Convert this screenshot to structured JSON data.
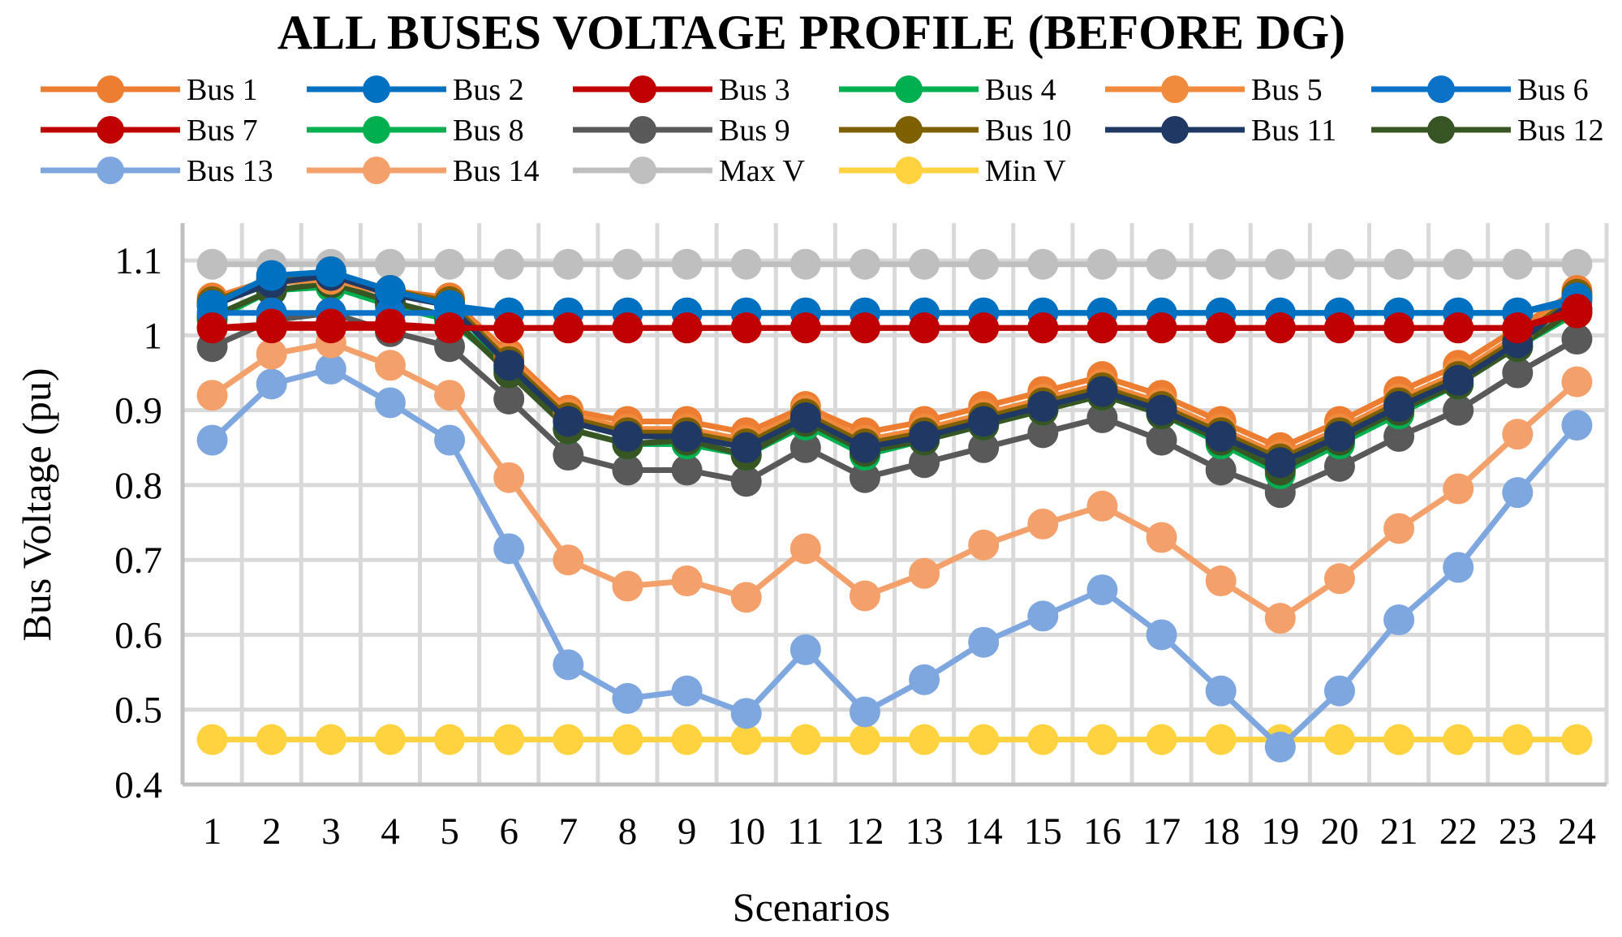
{
  "chart_data": {
    "type": "line",
    "title": "ALL BUSES VOLTAGE PROFILE (BEFORE DG)",
    "xlabel": "Scenarios",
    "ylabel": "Bus Voltage (pu)",
    "ylim": [
      0.4,
      1.15
    ],
    "yticks": [
      0.4,
      0.5,
      0.6,
      0.7,
      0.8,
      0.9,
      1,
      1.1
    ],
    "ytick_labels": [
      "0.4",
      "0.5",
      "0.6",
      "0.7",
      "0.8",
      "0.9",
      "1",
      "1.1"
    ],
    "categories": [
      "1",
      "2",
      "3",
      "4",
      "5",
      "6",
      "7",
      "8",
      "9",
      "10",
      "11",
      "12",
      "13",
      "14",
      "15",
      "16",
      "17",
      "18",
      "19",
      "20",
      "21",
      "22",
      "23",
      "24"
    ],
    "grid": true,
    "legend_position": "top",
    "series": [
      {
        "name": "Bus 1",
        "color": "#ED7D31",
        "values": [
          1.05,
          1.075,
          1.08,
          1.06,
          1.05,
          0.975,
          0.9,
          0.885,
          0.885,
          0.87,
          0.905,
          0.87,
          0.885,
          0.905,
          0.925,
          0.945,
          0.92,
          0.885,
          0.85,
          0.885,
          0.925,
          0.96,
          1.01,
          1.06
        ]
      },
      {
        "name": "Bus 2",
        "color": "#0070C0",
        "values": [
          1.04,
          1.08,
          1.085,
          1.06,
          1.04,
          1.03,
          1.03,
          1.03,
          1.03,
          1.03,
          1.03,
          1.03,
          1.03,
          1.03,
          1.03,
          1.03,
          1.03,
          1.03,
          1.03,
          1.03,
          1.03,
          1.03,
          1.03,
          1.05
        ]
      },
      {
        "name": "Bus 3",
        "color": "#C00000",
        "values": [
          1.01,
          1.01,
          1.01,
          1.01,
          1.01,
          1.01,
          1.01,
          1.01,
          1.01,
          1.01,
          1.01,
          1.01,
          1.01,
          1.01,
          1.01,
          1.01,
          1.01,
          1.01,
          1.01,
          1.01,
          1.01,
          1.01,
          1.01,
          1.03
        ]
      },
      {
        "name": "Bus 4",
        "color": "#00B050",
        "values": [
          1.02,
          1.06,
          1.065,
          1.04,
          1.02,
          0.955,
          0.875,
          0.855,
          0.855,
          0.84,
          0.88,
          0.84,
          0.86,
          0.88,
          0.9,
          0.92,
          0.895,
          0.86,
          0.82,
          0.86,
          0.9,
          0.935,
          0.985,
          1.03
        ]
      },
      {
        "name": "Bus 5",
        "color": "#F08A3C",
        "values": [
          1.045,
          1.07,
          1.075,
          1.055,
          1.045,
          0.97,
          0.895,
          0.875,
          0.875,
          0.86,
          0.9,
          0.86,
          0.875,
          0.895,
          0.915,
          0.935,
          0.91,
          0.875,
          0.84,
          0.875,
          0.915,
          0.95,
          1.0,
          1.055
        ]
      },
      {
        "name": "Bus 6",
        "color": "#0B72C8",
        "values": [
          1.03,
          1.03,
          1.03,
          1.03,
          1.03,
          1.03,
          1.03,
          1.03,
          1.03,
          1.03,
          1.03,
          1.03,
          1.03,
          1.03,
          1.03,
          1.03,
          1.03,
          1.03,
          1.03,
          1.03,
          1.03,
          1.03,
          1.03,
          1.045
        ]
      },
      {
        "name": "Bus 7",
        "color": "#C00000",
        "values": [
          1.01,
          1.015,
          1.015,
          1.015,
          1.01,
          1.01,
          1.01,
          1.01,
          1.01,
          1.01,
          1.01,
          1.01,
          1.01,
          1.01,
          1.01,
          1.01,
          1.01,
          1.01,
          1.01,
          1.01,
          1.01,
          1.01,
          1.01,
          1.035
        ]
      },
      {
        "name": "Bus 8",
        "color": "#00B050",
        "values": [
          1.025,
          1.06,
          1.065,
          1.045,
          1.025,
          0.955,
          0.875,
          0.855,
          0.855,
          0.84,
          0.885,
          0.84,
          0.86,
          0.88,
          0.9,
          0.92,
          0.895,
          0.855,
          0.815,
          0.855,
          0.895,
          0.935,
          0.985,
          1.035
        ]
      },
      {
        "name": "Bus 9",
        "color": "#595959",
        "values": [
          0.985,
          1.02,
          1.03,
          1.005,
          0.985,
          0.915,
          0.84,
          0.82,
          0.82,
          0.805,
          0.85,
          0.81,
          0.83,
          0.85,
          0.87,
          0.89,
          0.86,
          0.82,
          0.79,
          0.825,
          0.865,
          0.9,
          0.95,
          0.995
        ]
      },
      {
        "name": "Bus 10",
        "color": "#7F6000",
        "values": [
          1.045,
          1.075,
          1.085,
          1.06,
          1.045,
          0.965,
          0.89,
          0.87,
          0.87,
          0.855,
          0.895,
          0.855,
          0.87,
          0.89,
          0.91,
          0.93,
          0.905,
          0.87,
          0.835,
          0.87,
          0.91,
          0.945,
          0.995,
          1.055
        ]
      },
      {
        "name": "Bus 11",
        "color": "#203864",
        "values": [
          1.04,
          1.07,
          1.08,
          1.055,
          1.04,
          0.96,
          0.885,
          0.865,
          0.865,
          0.85,
          0.89,
          0.85,
          0.865,
          0.885,
          0.905,
          0.925,
          0.9,
          0.865,
          0.83,
          0.865,
          0.905,
          0.94,
          0.99,
          1.05
        ]
      },
      {
        "name": "Bus 12",
        "color": "#375623",
        "values": [
          1.025,
          1.06,
          1.07,
          1.045,
          1.025,
          0.95,
          0.875,
          0.855,
          0.86,
          0.84,
          0.885,
          0.845,
          0.86,
          0.88,
          0.9,
          0.92,
          0.895,
          0.86,
          0.82,
          0.86,
          0.9,
          0.935,
          0.985,
          1.035
        ]
      },
      {
        "name": "Bus 13",
        "color": "#7EA6DF",
        "values": [
          0.86,
          0.935,
          0.955,
          0.91,
          0.86,
          0.715,
          0.56,
          0.515,
          0.525,
          0.495,
          0.58,
          0.497,
          0.54,
          0.59,
          0.625,
          0.66,
          0.6,
          0.525,
          0.45,
          0.525,
          0.62,
          0.69,
          0.79,
          0.88
        ]
      },
      {
        "name": "Bus 14",
        "color": "#F4A06A",
        "values": [
          0.92,
          0.975,
          0.99,
          0.96,
          0.92,
          0.81,
          0.7,
          0.665,
          0.672,
          0.65,
          0.715,
          0.652,
          0.682,
          0.72,
          0.748,
          0.772,
          0.73,
          0.672,
          0.622,
          0.675,
          0.742,
          0.795,
          0.868,
          0.938
        ]
      },
      {
        "name": "Max V",
        "color": "#BFBFBF",
        "values": [
          1.095,
          1.095,
          1.095,
          1.095,
          1.095,
          1.095,
          1.095,
          1.095,
          1.095,
          1.095,
          1.095,
          1.095,
          1.095,
          1.095,
          1.095,
          1.095,
          1.095,
          1.095,
          1.095,
          1.095,
          1.095,
          1.095,
          1.095,
          1.095
        ]
      },
      {
        "name": "Min V",
        "color": "#FFD23F",
        "values": [
          0.46,
          0.46,
          0.46,
          0.46,
          0.46,
          0.46,
          0.46,
          0.46,
          0.46,
          0.46,
          0.46,
          0.46,
          0.46,
          0.46,
          0.46,
          0.46,
          0.46,
          0.46,
          0.46,
          0.46,
          0.46,
          0.46,
          0.46,
          0.46
        ]
      }
    ]
  }
}
